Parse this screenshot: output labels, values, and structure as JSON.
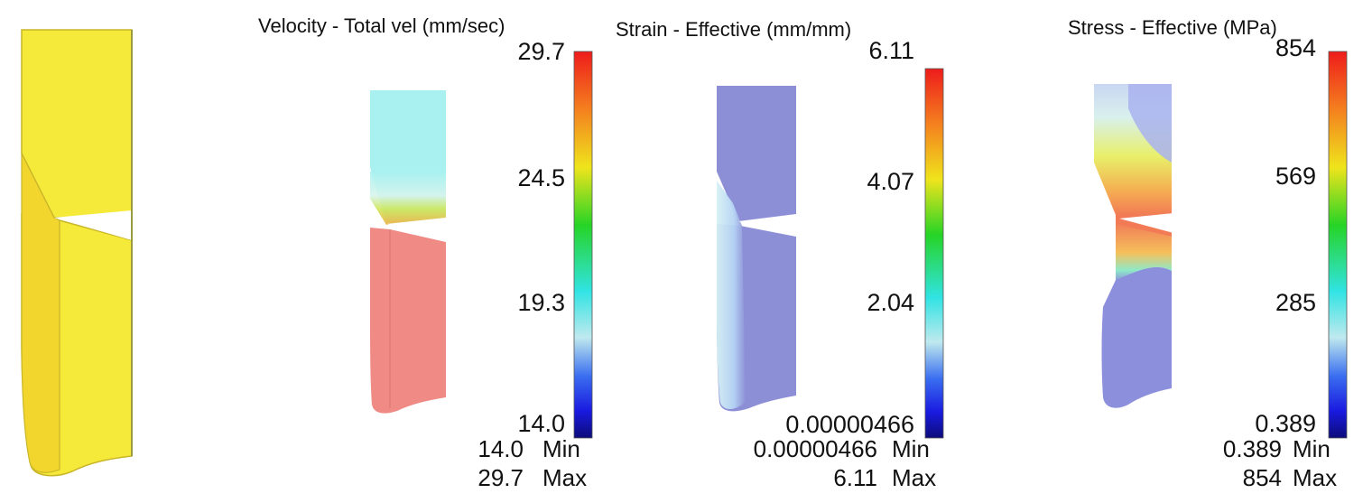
{
  "panels": [
    {
      "id": "reference"
    },
    {
      "id": "velocity",
      "title": "Velocity - Total vel (mm/sec)",
      "scale_top": "29.7",
      "scale_mid_high": "24.5",
      "scale_mid_low": "19.3",
      "scale_bottom": "14.0",
      "min_value": "14.0",
      "min_label": "Min",
      "max_value": "29.7",
      "max_label": "Max"
    },
    {
      "id": "strain",
      "title": "Strain - Effective (mm/mm)",
      "scale_top": "6.11",
      "scale_mid_high": "4.07",
      "scale_mid_low": "2.04",
      "scale_bottom": "0.00000466",
      "min_value": "0.00000466",
      "min_label": "Min",
      "max_value": "6.11",
      "max_label": "Max"
    },
    {
      "id": "stress",
      "title": "Stress - Effective (MPa)",
      "scale_top": "854",
      "scale_mid_high": "569",
      "scale_mid_low": "285",
      "scale_bottom": "0.389",
      "min_value": "0.389",
      "min_label": "Min",
      "max_value": "854",
      "max_label": "Max"
    }
  ],
  "colors": {
    "reference_part": "#f5e93a",
    "velocity_upper": "#a8f1f0",
    "velocity_lower": "#f08a84",
    "strain_body": "#8c8fd6",
    "stress_body": "#8c90dc"
  }
}
